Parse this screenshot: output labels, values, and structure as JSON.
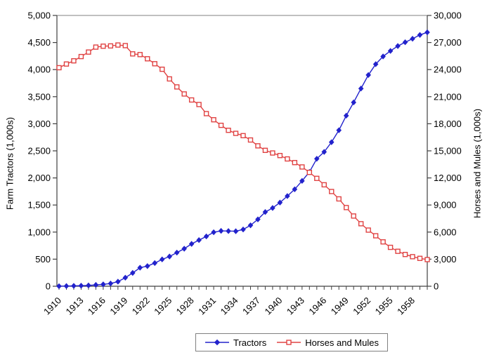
{
  "chart_data": {
    "type": "line",
    "title": "",
    "grid": false,
    "x": [
      1910,
      1911,
      1912,
      1913,
      1914,
      1915,
      1916,
      1917,
      1918,
      1919,
      1920,
      1921,
      1922,
      1923,
      1924,
      1925,
      1926,
      1927,
      1928,
      1929,
      1930,
      1931,
      1932,
      1933,
      1934,
      1935,
      1936,
      1937,
      1938,
      1939,
      1940,
      1941,
      1942,
      1943,
      1944,
      1945,
      1946,
      1947,
      1948,
      1949,
      1950,
      1951,
      1952,
      1953,
      1954,
      1955,
      1956,
      1957,
      1958,
      1959,
      1960
    ],
    "x_tick_labels": [
      "1910",
      "1913",
      "1916",
      "1919",
      "1922",
      "1925",
      "1928",
      "1931",
      "1934",
      "1937",
      "1940",
      "1943",
      "1946",
      "1949",
      "1952",
      "1955",
      "1958"
    ],
    "left_axis": {
      "label": "Farm Tractors (1,000s)",
      "min": 0,
      "max": 5000,
      "tick_step": 500,
      "tick_labels": [
        "0",
        "500",
        "1,000",
        "1,500",
        "2,000",
        "2,500",
        "3,000",
        "3,500",
        "4,000",
        "4,500",
        "5,000"
      ]
    },
    "right_axis": {
      "label": "Horses and Mules (1,000s)",
      "min": 0,
      "max": 30000,
      "tick_step": 3000,
      "tick_labels": [
        "0",
        "3,000",
        "6,000",
        "9,000",
        "12,000",
        "15,000",
        "18,000",
        "21,000",
        "24,000",
        "27,000",
        "30,000"
      ]
    },
    "series": [
      {
        "name": "Tractors",
        "axis": "left",
        "color": "#2222cc",
        "marker": "diamond",
        "values": [
          1,
          4,
          7,
          10,
          15,
          25,
          35,
          51,
          85,
          158,
          246,
          343,
          372,
          428,
          496,
          549,
          621,
          693,
          782,
          852,
          920,
          997,
          1022,
          1019,
          1016,
          1048,
          1125,
          1235,
          1370,
          1445,
          1545,
          1665,
          1790,
          1945,
          2110,
          2354,
          2480,
          2660,
          2880,
          3150,
          3394,
          3650,
          3900,
          4100,
          4243,
          4345,
          4435,
          4505,
          4570,
          4640,
          4688
        ]
      },
      {
        "name": "Horses and Mules",
        "axis": "right",
        "color": "#e04343",
        "marker": "open-square",
        "values": [
          24211,
          24619,
          24972,
          25445,
          25942,
          26493,
          26592,
          26624,
          26723,
          26657,
          25742,
          25662,
          25199,
          24650,
          24040,
          22969,
          22082,
          21302,
          20636,
          20132,
          19124,
          18444,
          17826,
          17276,
          16937,
          16683,
          16203,
          15554,
          15055,
          14763,
          14478,
          14104,
          13699,
          13216,
          12613,
          11950,
          11238,
          10494,
          9677,
          8716,
          7781,
          6927,
          6220,
          5592,
          4916,
          4309,
          3872,
          3520,
          3276,
          3089,
          2955
        ]
      }
    ],
    "legend": {
      "position": "bottom",
      "entries": [
        "Tractors",
        "Horses and Mules"
      ]
    }
  },
  "colors": {
    "plot_border": "#808080",
    "axis_line": "#404040",
    "background": "#ffffff",
    "text": "#000000"
  }
}
